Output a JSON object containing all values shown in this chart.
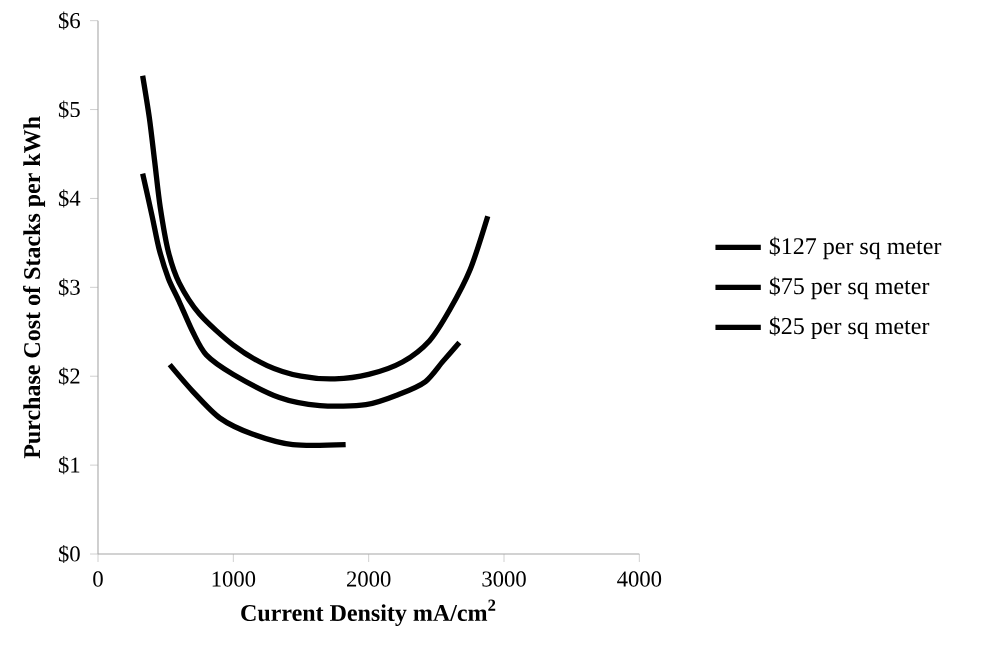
{
  "chart_data": {
    "type": "line",
    "xlabel": "Current Density  mA/cm$^{2}$",
    "ylabel": "Purchase Cost of Stacks per kWh",
    "xlim": [
      0,
      4000
    ],
    "xticks": [
      0,
      1000,
      2000,
      3000,
      4000
    ],
    "ylim": [
      0,
      6
    ],
    "yticks": [
      {
        "value": 0,
        "label": "$0"
      },
      {
        "value": 1,
        "label": "$1"
      },
      {
        "value": 2,
        "label": "$2"
      },
      {
        "value": 3,
        "label": "$3"
      },
      {
        "value": 4,
        "label": "$4"
      },
      {
        "value": 5,
        "label": "$5"
      },
      {
        "value": 6,
        "label": "$6"
      }
    ],
    "legend": "right",
    "grid": false,
    "marker": "none",
    "line_style": "solid",
    "series": [
      {
        "name": "$127 per sq meter",
        "color": "#000000",
        "x": [
          330,
          380,
          420,
          460,
          520,
          600,
          750,
          1000,
          1250,
          1500,
          1750,
          2000,
          2250,
          2450,
          2600,
          2750,
          2880
        ],
        "values": [
          5.38,
          4.9,
          4.4,
          3.9,
          3.4,
          3.05,
          2.7,
          2.35,
          2.12,
          2.0,
          1.97,
          2.02,
          2.16,
          2.4,
          2.75,
          3.2,
          3.8
        ]
      },
      {
        "name": "$75  per sq meter",
        "color": "#000000",
        "x": [
          330,
          400,
          450,
          520,
          600,
          700,
          800,
          1000,
          1340,
          1640,
          1980,
          2230,
          2420,
          2550,
          2670
        ],
        "values": [
          4.28,
          3.8,
          3.44,
          3.1,
          2.84,
          2.5,
          2.24,
          2.02,
          1.76,
          1.67,
          1.68,
          1.8,
          1.94,
          2.17,
          2.38
        ]
      },
      {
        "name": "$25 per sq meter",
        "color": "#000000",
        "x": [
          530,
          700,
          900,
          1140,
          1440,
          1830
        ],
        "values": [
          2.13,
          1.83,
          1.53,
          1.35,
          1.23,
          1.23
        ]
      }
    ]
  }
}
